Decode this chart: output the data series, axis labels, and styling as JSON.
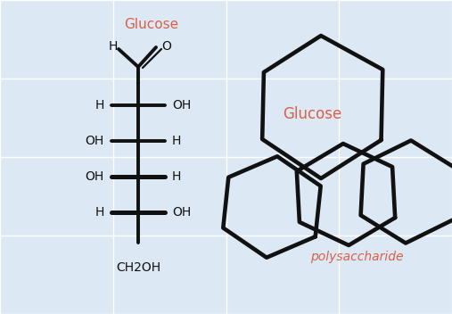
{
  "bg_color": "#dce8f4",
  "grid_color": "#ffffff",
  "line_color": "#111111",
  "label_color_red": "#d9604a",
  "label_color_black": "#111111",
  "title": "Glucose",
  "glucose_label_right": "Glucose",
  "polysaccharide_label": "polysaccharide",
  "figsize": [
    5.07,
    3.52
  ],
  "dpi": 100
}
